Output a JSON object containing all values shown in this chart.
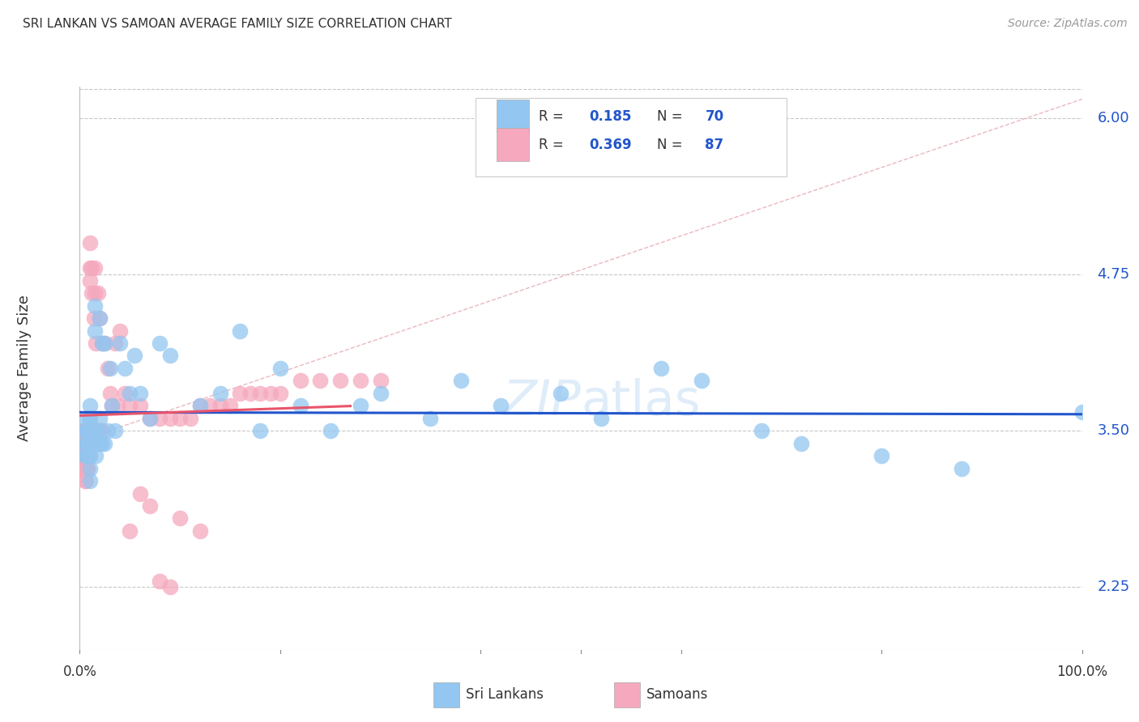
{
  "title": "SRI LANKAN VS SAMOAN AVERAGE FAMILY SIZE CORRELATION CHART",
  "source": "Source: ZipAtlas.com",
  "ylabel": "Average Family Size",
  "yticks": [
    2.25,
    3.5,
    4.75,
    6.0
  ],
  "y_min": 1.75,
  "y_max": 6.25,
  "x_min": 0.0,
  "x_max": 1.0,
  "sri_lankans_color": "#93c6f0",
  "samoans_color": "#f5a8be",
  "sri_lankans_line_color": "#2255cc",
  "samoans_line_color": "#e8546a",
  "diagonal_line_color": "#e8b0b8",
  "background_color": "#ffffff",
  "grid_color": "#c8c8c8",
  "title_color": "#333333",
  "right_tick_color": "#2255cc",
  "legend_label1": "Sri Lankans",
  "legend_label2": "Samoans",
  "sri_lankans_x": [
    0.005,
    0.005,
    0.005,
    0.006,
    0.006,
    0.007,
    0.007,
    0.008,
    0.008,
    0.008,
    0.009,
    0.009,
    0.009,
    0.01,
    0.01,
    0.01,
    0.01,
    0.01,
    0.01,
    0.01,
    0.012,
    0.012,
    0.013,
    0.013,
    0.015,
    0.015,
    0.015,
    0.016,
    0.016,
    0.018,
    0.018,
    0.02,
    0.02,
    0.02,
    0.022,
    0.022,
    0.025,
    0.025,
    0.028,
    0.03,
    0.032,
    0.035,
    0.04,
    0.045,
    0.05,
    0.055,
    0.06,
    0.07,
    0.08,
    0.09,
    0.12,
    0.14,
    0.16,
    0.18,
    0.2,
    0.22,
    0.25,
    0.28,
    0.3,
    0.35,
    0.38,
    0.42,
    0.48,
    0.52,
    0.58,
    0.62,
    0.68,
    0.72,
    0.8,
    0.88,
    1.0
  ],
  "sri_lankans_y": [
    3.5,
    3.4,
    3.3,
    3.6,
    3.5,
    3.4,
    3.3,
    3.5,
    3.4,
    3.3,
    3.6,
    3.5,
    3.4,
    3.7,
    3.6,
    3.5,
    3.4,
    3.3,
    3.2,
    3.1,
    3.5,
    3.4,
    3.5,
    3.4,
    4.5,
    4.3,
    3.4,
    3.5,
    3.3,
    3.5,
    3.4,
    4.4,
    3.6,
    3.4,
    4.2,
    3.4,
    4.2,
    3.4,
    3.5,
    4.0,
    3.7,
    3.5,
    4.2,
    4.0,
    3.8,
    4.1,
    3.8,
    3.6,
    4.2,
    4.1,
    3.7,
    3.8,
    4.3,
    3.5,
    4.0,
    3.7,
    3.5,
    3.7,
    3.8,
    3.6,
    3.9,
    3.7,
    3.8,
    3.6,
    4.0,
    3.9,
    3.5,
    3.4,
    3.3,
    3.2,
    3.65
  ],
  "samoans_x": [
    0.003,
    0.003,
    0.003,
    0.004,
    0.004,
    0.004,
    0.004,
    0.005,
    0.005,
    0.005,
    0.005,
    0.005,
    0.006,
    0.006,
    0.006,
    0.006,
    0.006,
    0.007,
    0.007,
    0.007,
    0.007,
    0.008,
    0.008,
    0.008,
    0.008,
    0.009,
    0.009,
    0.009,
    0.01,
    0.01,
    0.01,
    0.01,
    0.01,
    0.012,
    0.012,
    0.012,
    0.014,
    0.014,
    0.015,
    0.015,
    0.015,
    0.016,
    0.016,
    0.018,
    0.018,
    0.02,
    0.02,
    0.022,
    0.022,
    0.025,
    0.028,
    0.03,
    0.032,
    0.035,
    0.038,
    0.04,
    0.045,
    0.05,
    0.06,
    0.07,
    0.08,
    0.09,
    0.1,
    0.11,
    0.12,
    0.13,
    0.14,
    0.15,
    0.16,
    0.17,
    0.18,
    0.19,
    0.2,
    0.22,
    0.24,
    0.26,
    0.28,
    0.3,
    0.1,
    0.12,
    0.08,
    0.09,
    0.06,
    0.07,
    0.05
  ],
  "samoans_y": [
    3.5,
    3.4,
    3.3,
    3.5,
    3.4,
    3.3,
    3.2,
    3.5,
    3.4,
    3.3,
    3.2,
    3.1,
    3.5,
    3.4,
    3.3,
    3.2,
    3.1,
    3.5,
    3.4,
    3.3,
    3.2,
    3.5,
    3.4,
    3.3,
    3.2,
    3.5,
    3.4,
    3.3,
    5.0,
    4.8,
    4.7,
    3.5,
    3.4,
    4.8,
    4.6,
    3.5,
    4.4,
    3.5,
    4.8,
    4.6,
    3.5,
    4.2,
    3.5,
    4.6,
    3.5,
    4.4,
    3.5,
    4.2,
    3.5,
    4.2,
    4.0,
    3.8,
    3.7,
    4.2,
    3.7,
    4.3,
    3.8,
    3.7,
    3.7,
    3.6,
    3.6,
    3.6,
    3.6,
    3.6,
    3.7,
    3.7,
    3.7,
    3.7,
    3.8,
    3.8,
    3.8,
    3.8,
    3.8,
    3.9,
    3.9,
    3.9,
    3.9,
    3.9,
    2.8,
    2.7,
    2.3,
    2.25,
    3.0,
    2.9,
    2.7
  ]
}
